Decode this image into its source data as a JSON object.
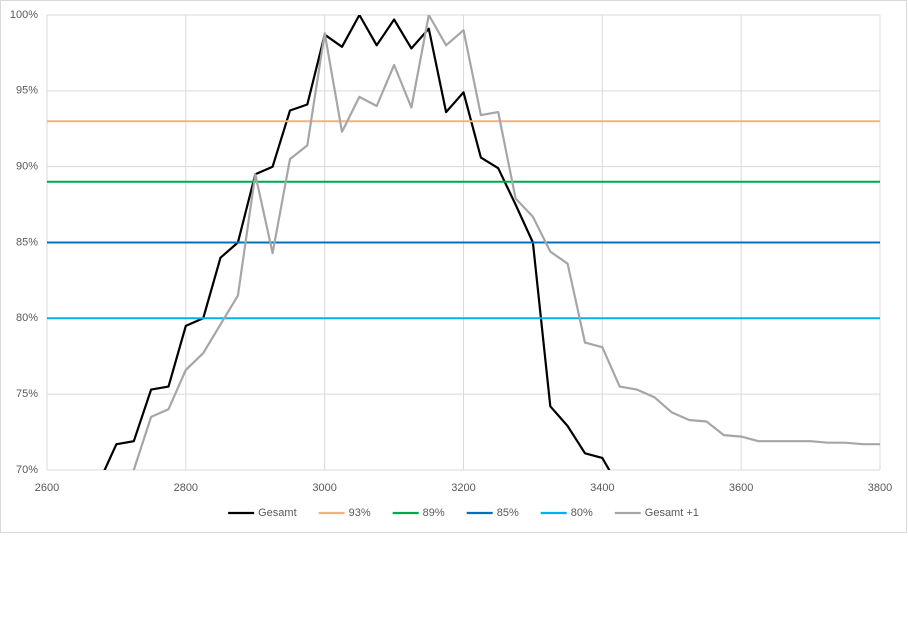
{
  "chart_data": {
    "type": "line",
    "x": [
      2675,
      2700,
      2725,
      2750,
      2775,
      2800,
      2825,
      2850,
      2875,
      2900,
      2925,
      2950,
      2975,
      3000,
      3025,
      3050,
      3075,
      3100,
      3125,
      3150,
      3175,
      3200,
      3225,
      3250,
      3275,
      3300,
      3325,
      3350,
      3375,
      3400,
      3425,
      3450,
      3475,
      3500,
      3525,
      3550,
      3575,
      3600,
      3625,
      3650,
      3675,
      3700,
      3725,
      3750,
      3775,
      3800
    ],
    "series": [
      {
        "name": "Gesamt",
        "color": "#000000",
        "values": [
          69.2,
          71.7,
          71.9,
          75.3,
          75.5,
          79.5,
          80.0,
          84.0,
          85.0,
          89.5,
          90.0,
          93.7,
          94.1,
          98.7,
          97.9,
          100,
          98.0,
          99.7,
          97.8,
          99.1,
          93.6,
          94.9,
          90.6,
          89.9,
          87.5,
          85.0,
          74.2,
          72.9,
          71.1,
          70.8,
          68.8,
          null,
          null,
          null,
          null,
          null,
          null,
          null,
          null,
          null,
          null,
          null,
          null,
          null,
          null,
          null
        ]
      },
      {
        "name": "93%",
        "color": "#f4b183",
        "x": [
          2600,
          3800
        ],
        "values": [
          93,
          93
        ]
      },
      {
        "name": "89%",
        "color": "#00a650",
        "x": [
          2600,
          3800
        ],
        "values": [
          89,
          89
        ]
      },
      {
        "name": "85%",
        "color": "#0070c0",
        "x": [
          2600,
          3800
        ],
        "values": [
          85,
          85
        ]
      },
      {
        "name": "80%",
        "color": "#00b0f0",
        "x": [
          2600,
          3800
        ],
        "values": [
          80,
          80
        ]
      },
      {
        "name": "Gesamt +1",
        "color": "#a6a6a6",
        "values": [
          null,
          67,
          70.0,
          73.5,
          74.0,
          76.6,
          77.7,
          79.6,
          81.5,
          89.5,
          84.3,
          90.5,
          91.4,
          98.8,
          92.3,
          94.6,
          94.0,
          96.7,
          93.9,
          100,
          98.0,
          99.0,
          93.4,
          93.6,
          87.9,
          86.7,
          84.4,
          83.6,
          78.4,
          78.1,
          75.5,
          75.3,
          74.8,
          73.8,
          73.3,
          73.2,
          72.3,
          72.2,
          71.9,
          71.9,
          71.9,
          71.9,
          71.8,
          71.8,
          71.7,
          71.7
        ]
      }
    ],
    "xlim": [
      2600,
      3800
    ],
    "xticks": [
      2600,
      2800,
      3000,
      3200,
      3400,
      3600,
      3800
    ],
    "ylim": [
      70,
      100
    ],
    "yticks": [
      {
        "value": 70,
        "label": "70%"
      },
      {
        "value": 75,
        "label": "75%"
      },
      {
        "value": 80,
        "label": "80%"
      },
      {
        "value": 85,
        "label": "85%"
      },
      {
        "value": 90,
        "label": "90%"
      },
      {
        "value": 95,
        "label": "95%"
      },
      {
        "value": 100,
        "label": "100%"
      }
    ],
    "grid": true,
    "legend": "bottom"
  }
}
